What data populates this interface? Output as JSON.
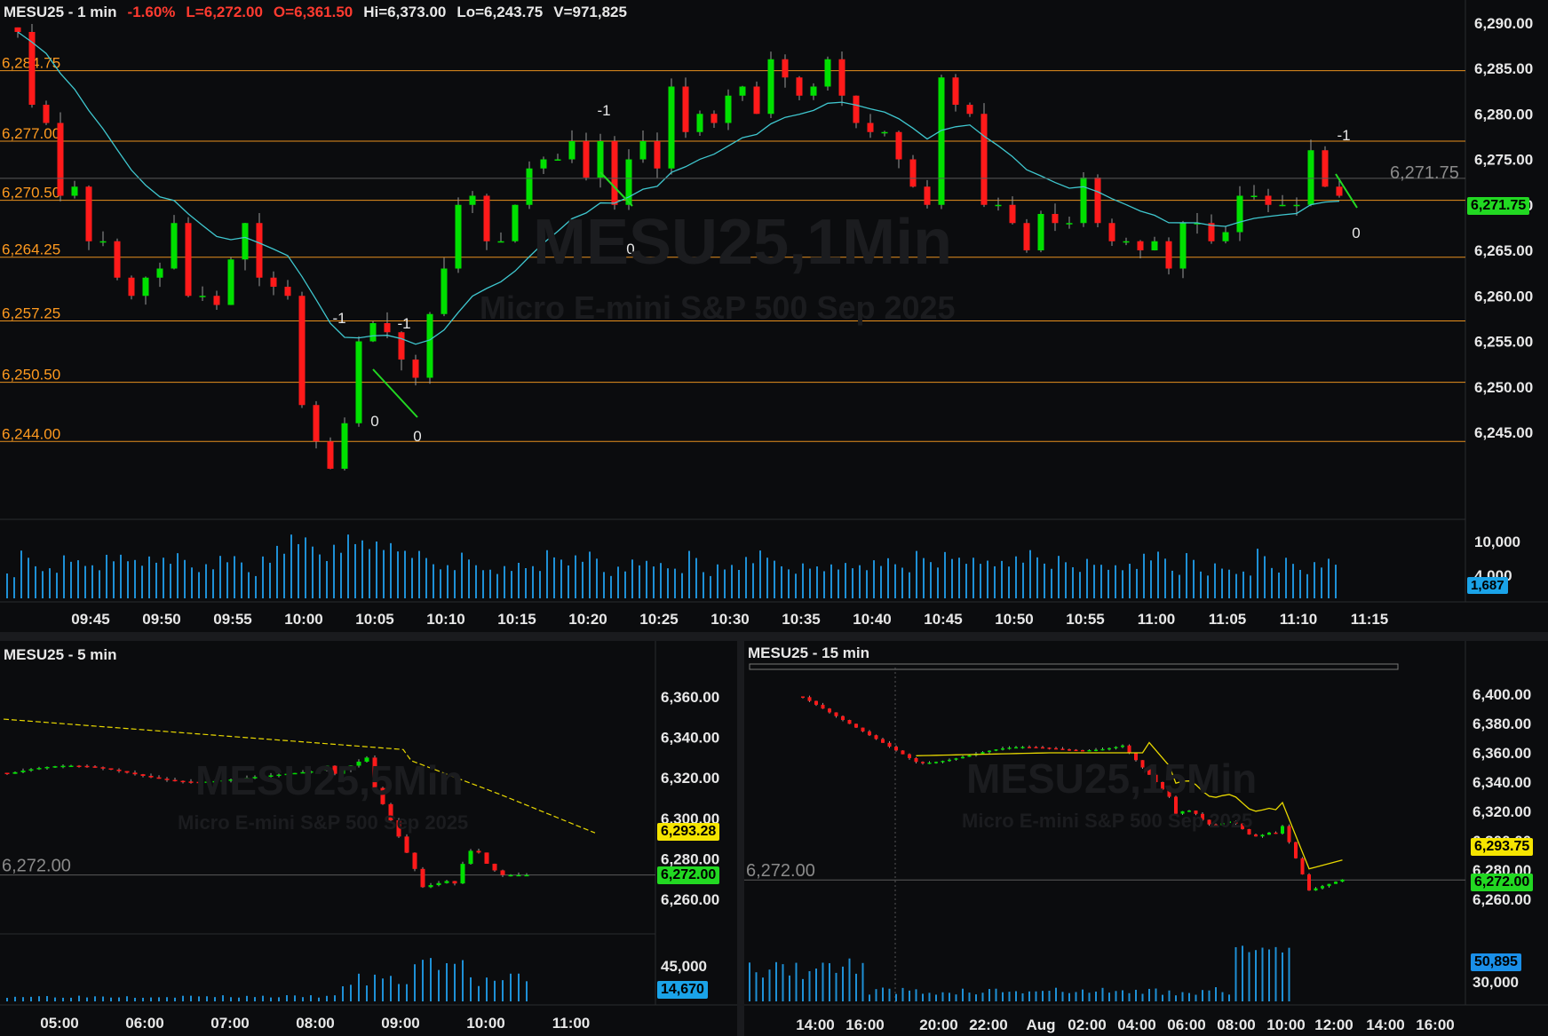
{
  "top_chart": {
    "title": {
      "symbol": "MESU25 - 1 min",
      "change": "-1.60%",
      "last": "L=6,272.00",
      "open": "O=6,361.50",
      "high": "Hi=6,373.00",
      "low": "Lo=6,243.75",
      "volume": "V=971,825"
    },
    "watermark": {
      "line1": "MESU25,1Min",
      "line2": "Micro E-mini S&P 500 Sep 2025"
    },
    "price_axis": [
      "6,290.00",
      "6,285.00",
      "6,280.00",
      "6,275.00",
      "6,270.00",
      "6,265.00",
      "6,260.00",
      "6,255.00",
      "6,250.00",
      "6,245.00"
    ],
    "volume_axis": [
      "10,000",
      "4,000"
    ],
    "time_axis": [
      "09:45",
      "09:50",
      "09:55",
      "10:00",
      "10:05",
      "10:10",
      "10:15",
      "10:20",
      "10:25",
      "10:30",
      "10:35",
      "10:40",
      "10:45",
      "10:50",
      "10:55",
      "11:00",
      "11:05",
      "11:10",
      "11:15"
    ],
    "levels": [
      "6,284.75",
      "6,277.00",
      "6,270.50",
      "6,264.25",
      "6,257.25",
      "6,250.50",
      "6,244.00"
    ],
    "current_price_tag": "6,271.75",
    "current_price_label": "6,271.75",
    "volume_tag": "1,687",
    "trade_marks": {
      "minus_one": "-1",
      "zero": "0"
    },
    "colors": {
      "up": "#00e000",
      "down": "#ff1a1a",
      "level_line": "#e8901e",
      "ma": "#3fc7cf",
      "price_tag": "#22d822",
      "volume_tag": "#1aa3e8",
      "volume_bars": "#1e90d6"
    }
  },
  "chart_5min": {
    "title": "MESU25 - 5 min",
    "watermark": {
      "line1": "MESU25,5Min",
      "line2": "Micro E-mini S&P 500 Sep 2025"
    },
    "price_axis": [
      "6,360.00",
      "6,340.00",
      "6,320.00",
      "6,300.00",
      "6,280.00",
      "6,260.00"
    ],
    "volume_axis": [
      "45,000"
    ],
    "time_axis": [
      "05:00",
      "06:00",
      "07:00",
      "08:00",
      "09:00",
      "10:00",
      "11:00"
    ],
    "ma_tag": "6,293.28",
    "price_tag": "6,272.00",
    "price_line_label": "6,272.00",
    "volume_tag": "14,670"
  },
  "chart_15min": {
    "title": "MESU25 - 15 min",
    "watermark": {
      "line1": "MESU25,15Min",
      "line2": "Micro E-mini S&P 500 Sep 2025"
    },
    "price_axis": [
      "6,400.00",
      "6,380.00",
      "6,360.00",
      "6,340.00",
      "6,320.00",
      "6,300.00",
      "6,280.00",
      "6,260.00"
    ],
    "volume_axis": [
      "30,000"
    ],
    "time_axis": [
      "14:00",
      "16:00",
      "20:00",
      "22:00",
      "Aug",
      "02:00",
      "04:00",
      "06:00",
      "08:00",
      "10:00",
      "12:00",
      "14:00",
      "16:00"
    ],
    "ma_tag": "6,293.75",
    "price_tag": "6,272.00",
    "price_line_label": "6,272.00",
    "volume_tag": "50,895"
  }
}
